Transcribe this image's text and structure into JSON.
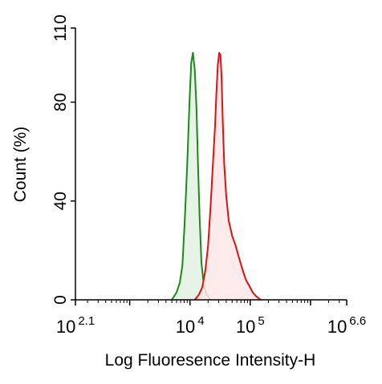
{
  "chart_data": {
    "type": "area",
    "xlabel": "Log Fluoresence Intensity-H",
    "ylabel": "Count  (%)",
    "x_scale": "log",
    "xlim": [
      125.9,
      3981000
    ],
    "ylim": [
      0,
      110
    ],
    "x_ticks": [
      {
        "base": "10",
        "exp": "2.1",
        "value": 125.9
      },
      {
        "base": "10",
        "exp": "4",
        "value": 10000
      },
      {
        "base": "10",
        "exp": "5",
        "value": 100000
      },
      {
        "base": "10",
        "exp": "6.6",
        "value": 3981000
      }
    ],
    "y_ticks": [
      0,
      40,
      80,
      110
    ],
    "grid": false,
    "legend": "none",
    "series": [
      {
        "color": "#1a8a1a",
        "fill": "#e3f1e3",
        "x": [
          5000,
          6000,
          6800,
          7500,
          8200,
          9000,
          9800,
          10500,
          11200,
          12000,
          12800,
          13600,
          14500,
          15500,
          17000,
          19000,
          22000
        ],
        "y": [
          0,
          3,
          7,
          14,
          32,
          55,
          80,
          96,
          100,
          93,
          78,
          55,
          33,
          15,
          6,
          2,
          0
        ]
      },
      {
        "color": "#dd1111",
        "fill": "#fde6e6",
        "x": [
          12000,
          14000,
          16000,
          18000,
          20000,
          22000,
          24000,
          26000,
          27500,
          29000,
          30500,
          32000,
          33500,
          35000,
          37000,
          40000,
          44000,
          50000,
          57000,
          65000,
          75000,
          85000,
          95000,
          110000,
          125000,
          150000
        ],
        "y": [
          0,
          2,
          5,
          12,
          22,
          38,
          55,
          70,
          84,
          95,
          100,
          99,
          90,
          72,
          55,
          42,
          32,
          26,
          22,
          17,
          12,
          8,
          6,
          3,
          1.5,
          0
        ]
      }
    ]
  }
}
